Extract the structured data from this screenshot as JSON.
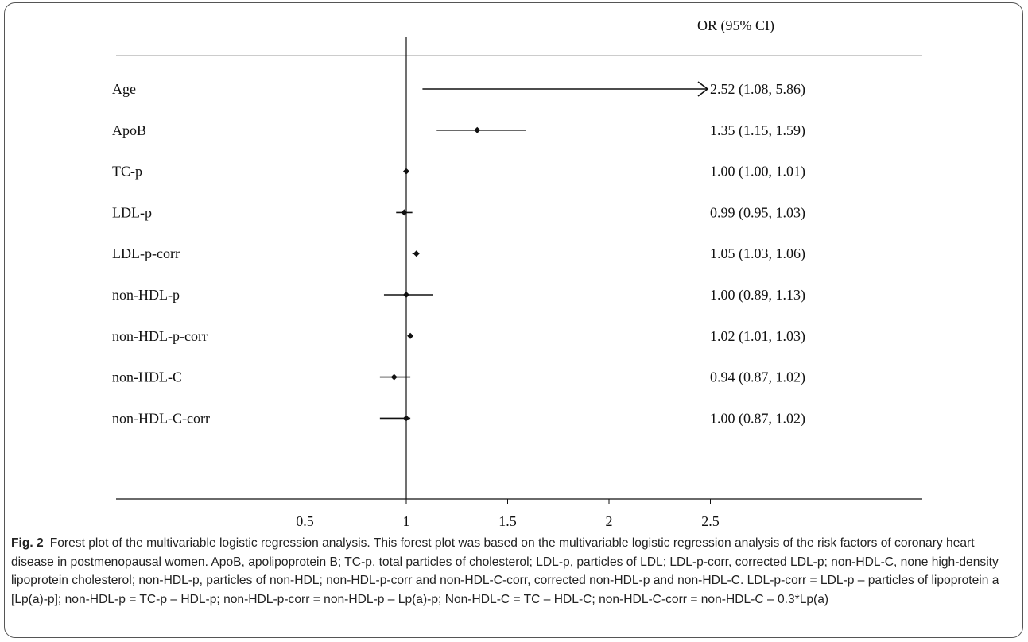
{
  "chart_data": {
    "type": "forest",
    "header": "OR (95% CI)",
    "xticks": [
      0.5,
      1,
      1.5,
      2,
      2.5
    ],
    "xlim": [
      0.0,
      3.0
    ],
    "reference_line": 1,
    "rows": [
      {
        "label": "Age",
        "or": 2.52,
        "lower": 1.08,
        "upper": 5.86,
        "text": "2.52 (1.08, 5.86)",
        "arrow_right": true
      },
      {
        "label": "ApoB",
        "or": 1.35,
        "lower": 1.15,
        "upper": 1.59,
        "text": "1.35 (1.15, 1.59)"
      },
      {
        "label": "TC-p",
        "or": 1.0,
        "lower": 1.0,
        "upper": 1.01,
        "text": "1.00 (1.00, 1.01)"
      },
      {
        "label": "LDL-p",
        "or": 0.99,
        "lower": 0.95,
        "upper": 1.03,
        "text": "0.99 (0.95, 1.03)"
      },
      {
        "label": "LDL-p-corr",
        "or": 1.05,
        "lower": 1.03,
        "upper": 1.06,
        "text": "1.05 (1.03, 1.06)"
      },
      {
        "label": "non-HDL-p",
        "or": 1.0,
        "lower": 0.89,
        "upper": 1.13,
        "text": "1.00 (0.89, 1.13)"
      },
      {
        "label": "non-HDL-p-corr",
        "or": 1.02,
        "lower": 1.01,
        "upper": 1.03,
        "text": "1.02 (1.01, 1.03)"
      },
      {
        "label": "non-HDL-C",
        "or": 0.94,
        "lower": 0.87,
        "upper": 1.02,
        "text": "0.94 (0.87, 1.02)"
      },
      {
        "label": "non-HDL-C-corr",
        "or": 1.0,
        "lower": 0.87,
        "upper": 1.02,
        "text": "1.00 (0.87, 1.02)"
      }
    ]
  },
  "caption": {
    "label": "Fig. 2",
    "text": "Forest plot of the multivariable logistic regression analysis. This forest plot was based on the multivariable logistic regression analysis of the risk factors of coronary heart disease in postmenopausal women. ApoB, apolipoprotein B; TC-p, total particles of cholesterol; LDL-p, particles of LDL; LDL-p-corr, corrected LDL-p; non-HDL-C, none high-density lipoprotein cholesterol; non-HDL-p, particles of non-HDL; non-HDL-p-corr and non-HDL-C-corr, corrected non-HDL-p and non-HDL-C. LDL-p-corr = LDL-p – particles of lipoprotein a [Lp(a)-p]; non-HDL-p = TC-p – HDL-p; non-HDL-p-corr = non-HDL-p – Lp(a)-p; Non-HDL-C = TC – HDL-C; non-HDL-C-corr = non-HDL-C – 0.3*Lp(a)"
  }
}
